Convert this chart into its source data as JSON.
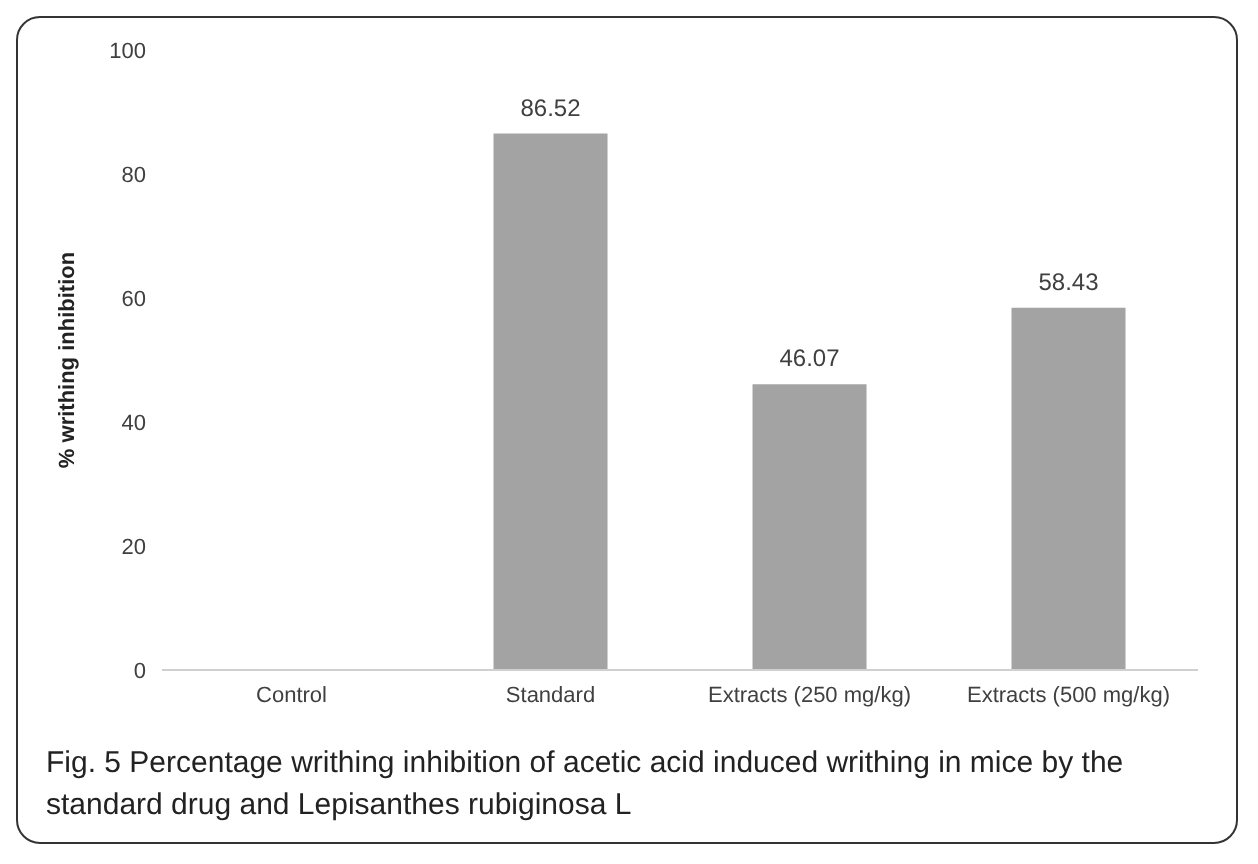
{
  "chart_data": {
    "type": "bar",
    "ylabel": "% writhing inhibition",
    "categories": [
      "Control",
      "Standard",
      "Extracts (250 mg/kg)",
      "Extracts (500 mg/kg)"
    ],
    "values": [
      0,
      86.52,
      46.07,
      58.43
    ],
    "value_labels": [
      null,
      "86.52",
      "46.07",
      "58.43"
    ],
    "color": "#a3a3a3",
    "ylim": [
      0,
      100
    ],
    "yticks": [
      0,
      20,
      40,
      60,
      80,
      100
    ],
    "annotations": [
      "Fig. 5 Percentage writhing inhibition of acetic acid induced writhing in mice by the standard drug and Lepisanthes rubiginosa L"
    ]
  }
}
